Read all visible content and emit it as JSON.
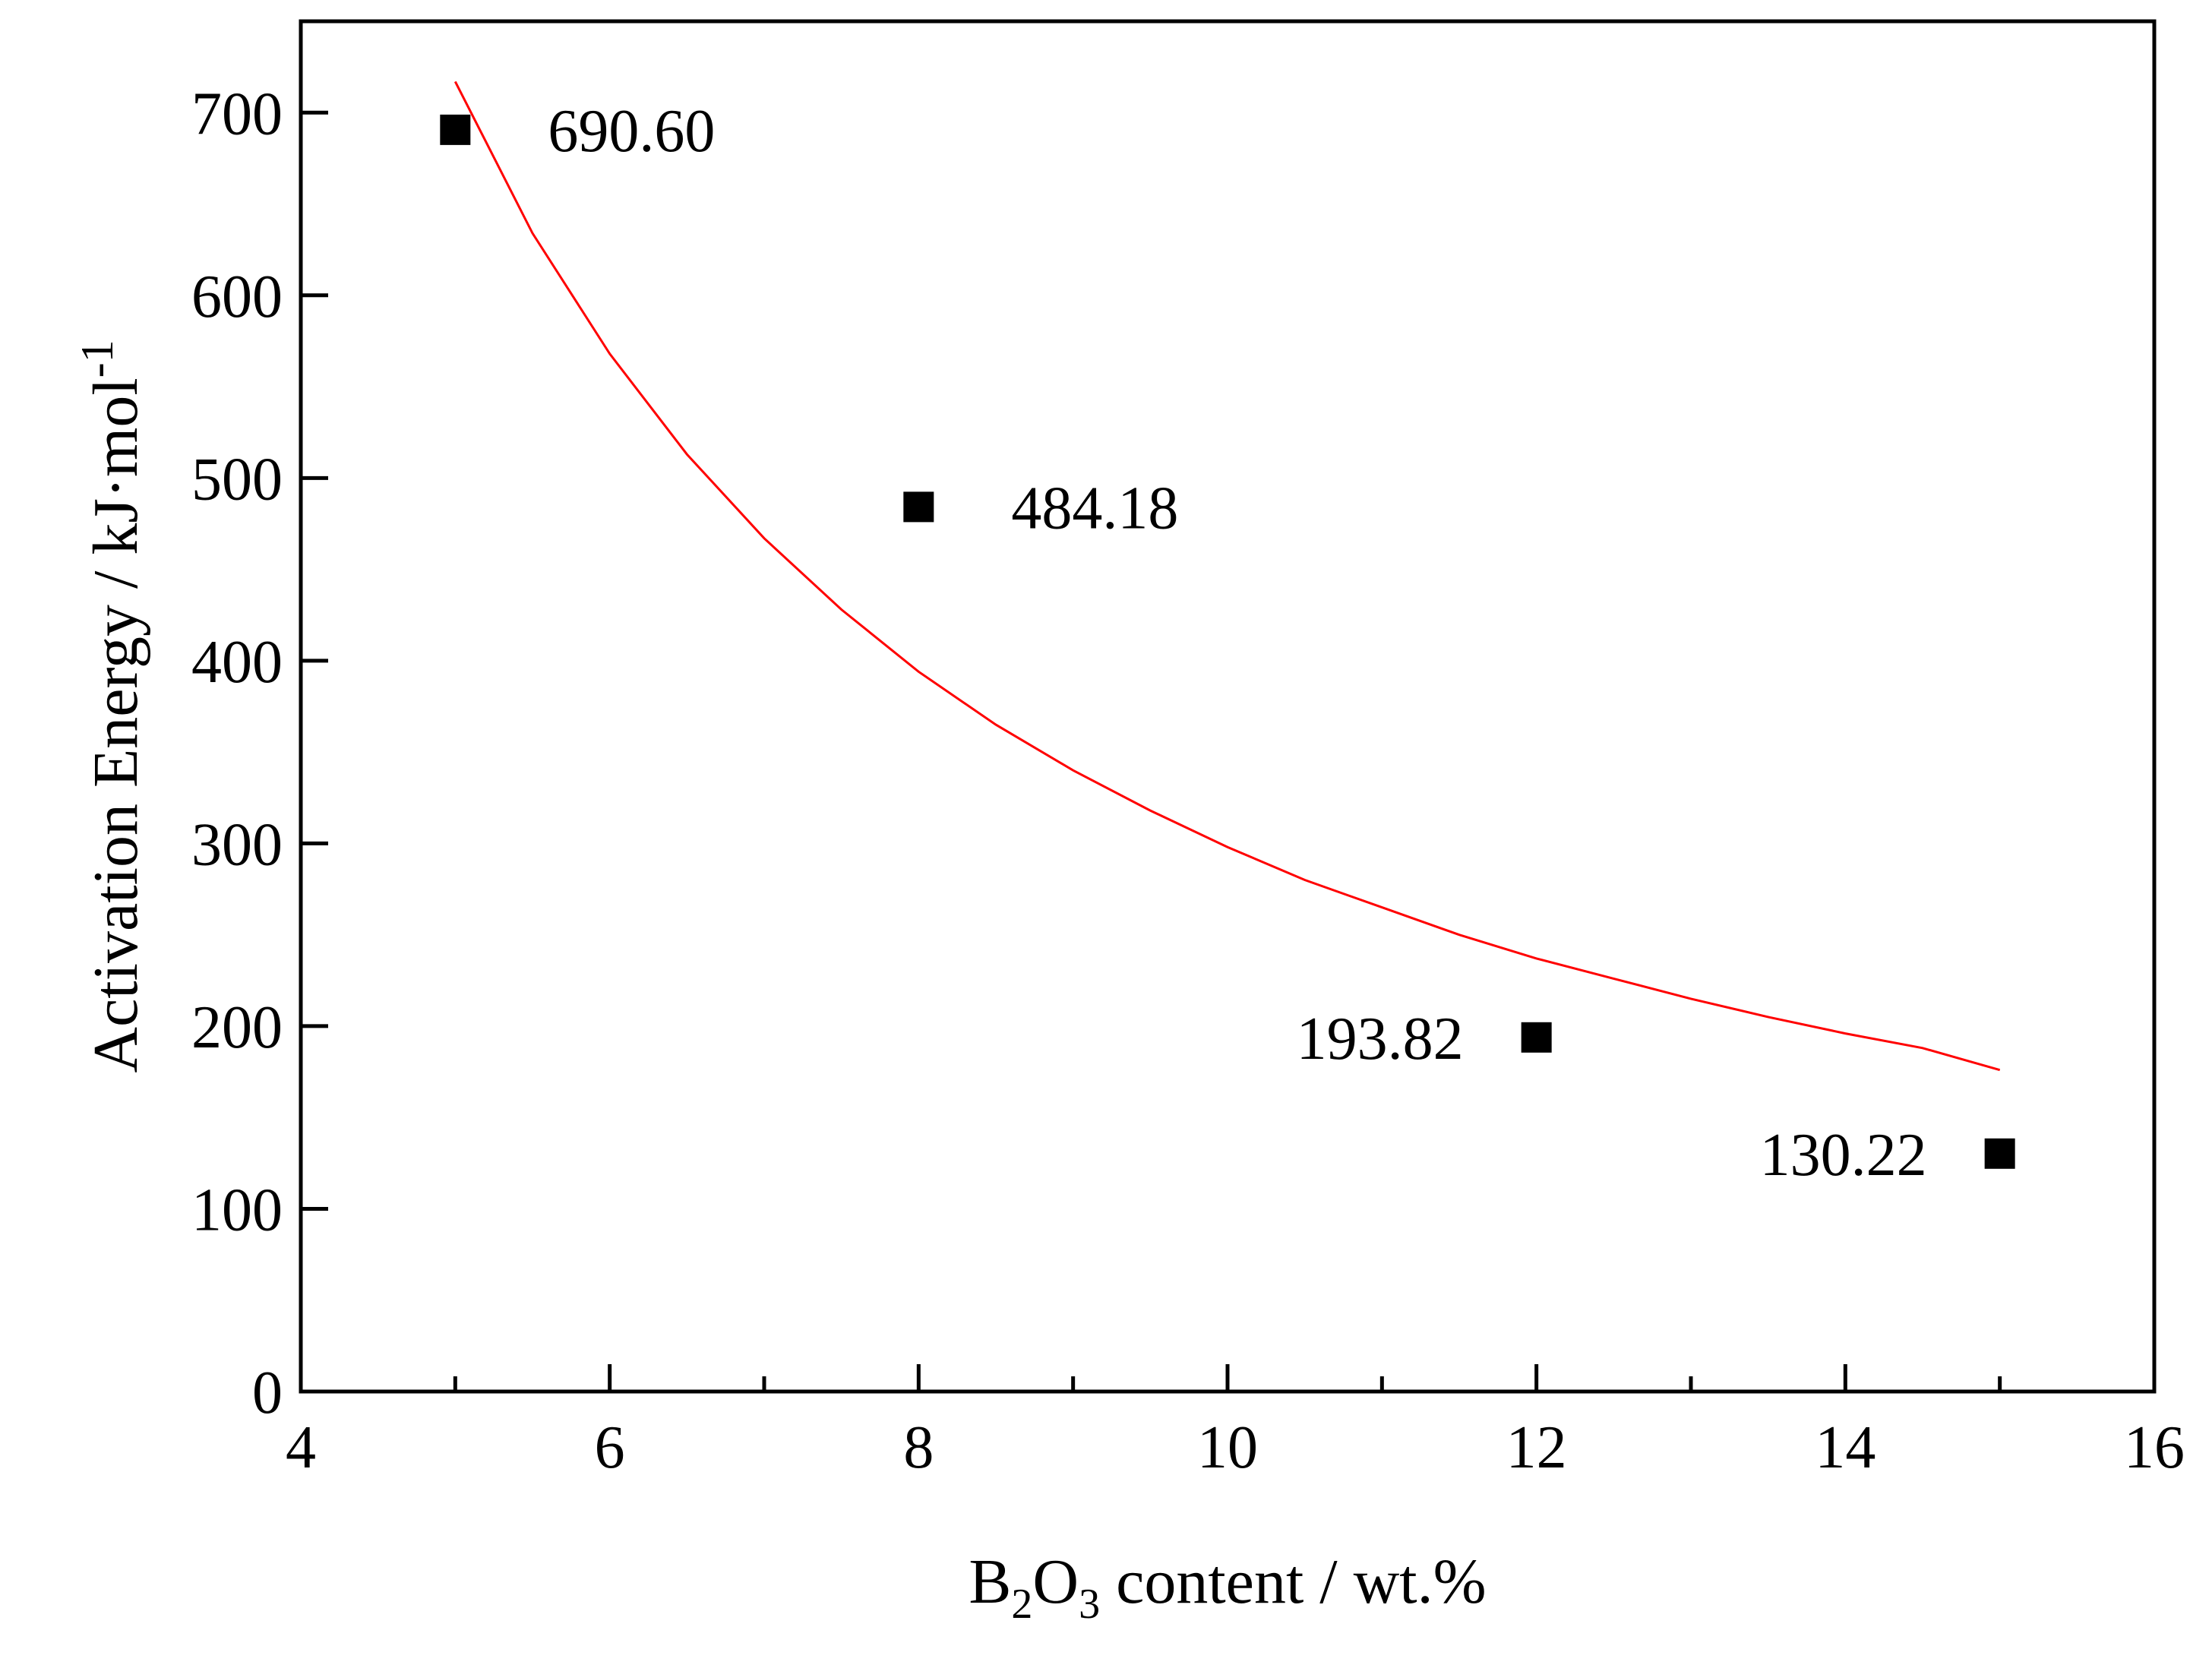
{
  "chart_data": {
    "type": "scatter",
    "title": "",
    "xlabel": {
      "prefix": "B",
      "sub1": "2",
      "mid": "O",
      "sub2": "3",
      "suffix": " content / wt.%"
    },
    "ylabel": {
      "text": "Activation Energy / kJ·mol",
      "sup": "-1"
    },
    "xlim": [
      4,
      16
    ],
    "ylim": [
      0,
      750
    ],
    "x_ticks": [
      4,
      6,
      8,
      10,
      12,
      14,
      16
    ],
    "x_minor_ticks": [
      5,
      7,
      9,
      11,
      13,
      15
    ],
    "y_ticks": [
      0,
      100,
      200,
      300,
      400,
      500,
      600,
      700
    ],
    "grid": false,
    "legend": "none",
    "marker": "square",
    "marker_color": "#000000",
    "points": [
      {
        "x": 5,
        "y": 690.6,
        "label": "690.60",
        "label_side": "right"
      },
      {
        "x": 8,
        "y": 484.18,
        "label": "484.18",
        "label_side": "right"
      },
      {
        "x": 12,
        "y": 193.82,
        "label": "193.82",
        "label_side": "left"
      },
      {
        "x": 15,
        "y": 130.22,
        "label": "130.22",
        "label_side": "left"
      }
    ],
    "fit_curve": {
      "color": "#ff0000",
      "type": "power",
      "x": [
        5,
        5.5,
        6,
        6.5,
        7,
        7.5,
        8,
        8.5,
        9,
        9.5,
        10,
        10.5,
        11,
        11.5,
        12,
        12.5,
        13,
        13.5,
        14,
        14.5,
        15
      ],
      "y": [
        717,
        634,
        568,
        513,
        467,
        428,
        394,
        365,
        340,
        318,
        298,
        280,
        265,
        250,
        237,
        226,
        215,
        205,
        196,
        188,
        176
      ]
    }
  }
}
